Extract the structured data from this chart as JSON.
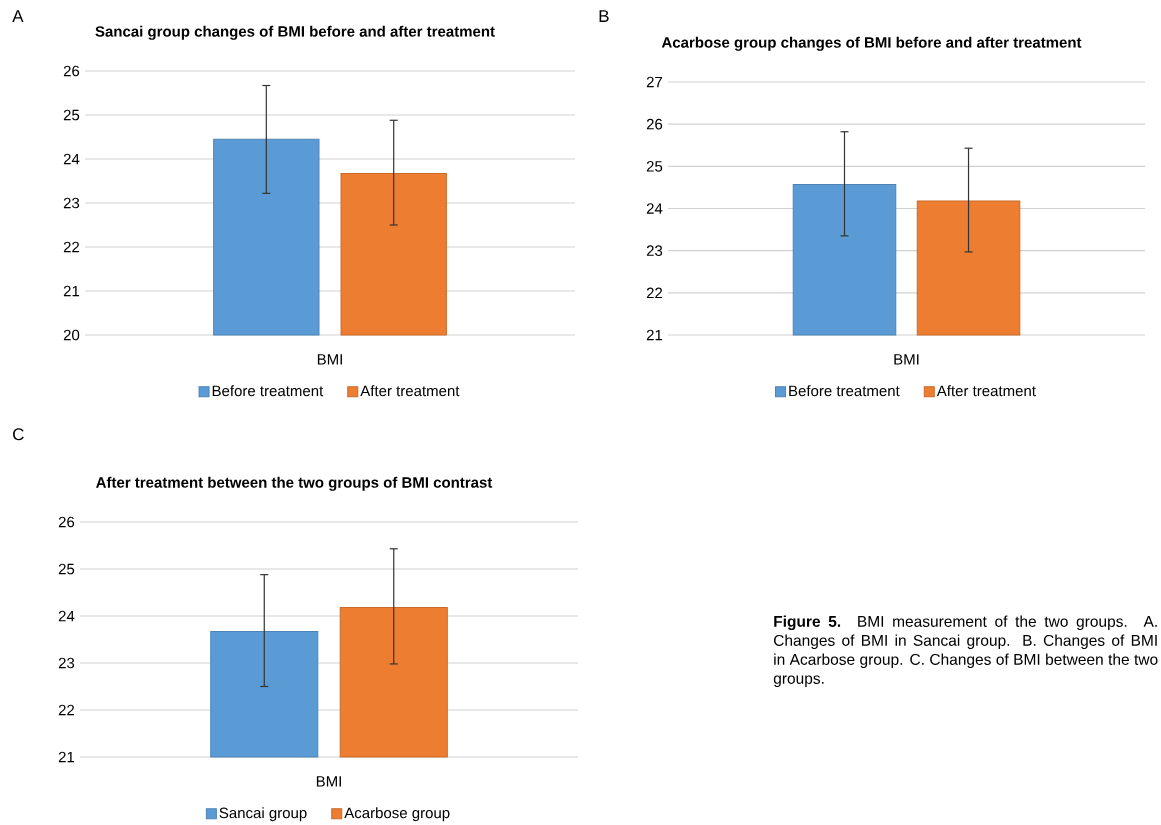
{
  "chart_data": [
    {
      "type": "bar",
      "title": "Sancai group changes of BMI before and after treatment",
      "annotations": [
        "A"
      ],
      "categories": [
        "BMI"
      ],
      "series": [
        {
          "name": "Before treatment",
          "color": "#5b9bd5",
          "values": [
            24.45
          ],
          "errors": [
            [
              23.22,
              25.67
            ]
          ]
        },
        {
          "name": "After treatment",
          "color": "#ed7d31",
          "values": [
            23.67
          ],
          "errors": [
            [
              22.5,
              24.88
            ]
          ]
        }
      ],
      "ylim": [
        20,
        26
      ],
      "yticks": [
        20,
        21,
        22,
        23,
        24,
        25,
        26
      ],
      "grid": "y",
      "legend": "bottom"
    },
    {
      "type": "bar",
      "title": "Acarbose group changes of BMI before and after treatment",
      "annotations": [
        "B"
      ],
      "categories": [
        "BMI"
      ],
      "series": [
        {
          "name": "Before treatment",
          "color": "#5b9bd5",
          "values": [
            24.57
          ],
          "errors": [
            [
              23.35,
              25.82
            ]
          ]
        },
        {
          "name": "After treatment",
          "color": "#ed7d31",
          "values": [
            24.18
          ],
          "errors": [
            [
              22.97,
              25.43
            ]
          ]
        }
      ],
      "ylim": [
        21,
        27
      ],
      "yticks": [
        21,
        22,
        23,
        24,
        25,
        26,
        27
      ],
      "grid": "y",
      "legend": "bottom"
    },
    {
      "type": "bar",
      "title": "After treatment between the two groups of BMI contrast",
      "annotations": [
        "C",
        "**Figure 5.** BMI measurement of the two groups. A. Changes of BMI in Sancai group. B. Changes of BMI in Acarbose group. C. Changes of BMI between the two groups."
      ],
      "categories": [
        "BMI"
      ],
      "series": [
        {
          "name": "Sancai group",
          "color": "#5b9bd5",
          "values": [
            23.67
          ],
          "errors": [
            [
              22.5,
              24.88
            ]
          ]
        },
        {
          "name": "Acarbose group",
          "color": "#ed7d31",
          "values": [
            24.18
          ],
          "errors": [
            [
              22.98,
              25.43
            ]
          ]
        }
      ],
      "ylim": [
        21,
        26
      ],
      "yticks": [
        21,
        22,
        23,
        24,
        25,
        26
      ],
      "grid": "y",
      "legend": "bottom"
    }
  ]
}
